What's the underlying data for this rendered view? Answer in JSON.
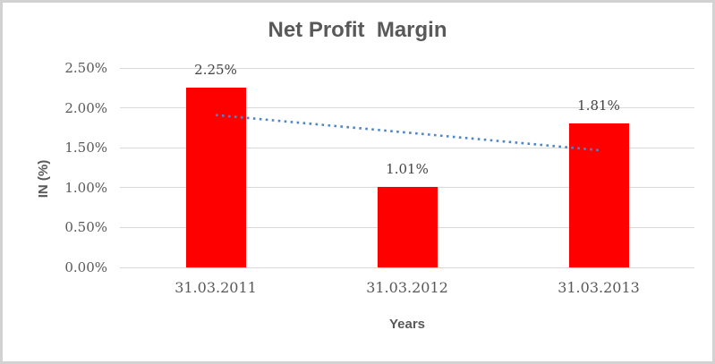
{
  "window": {
    "background": "#ffffff",
    "border_color": "#d2d2d2"
  },
  "colors": {
    "title_text": "#595959",
    "axis_title_text": "#595959",
    "tick_text": "#595959",
    "data_label_text": "#444444",
    "gridline": "#d9d9d9",
    "bar": "#ff0000",
    "trendline": "#4e86c8"
  },
  "chart_data": {
    "type": "bar",
    "title": "Net Profit  Margin",
    "categories": [
      "31.03.2011",
      "31.03.2012",
      "31.03.2013"
    ],
    "series": [
      {
        "name": "Net Profit Margin",
        "values": [
          2.25,
          1.01,
          1.81
        ]
      }
    ],
    "data_labels": [
      "2.25%",
      "1.01%",
      "1.81%"
    ],
    "xlabel": "Years",
    "ylabel": "IN (%)",
    "ylim": [
      0,
      2.5
    ],
    "ytick_step": 0.5,
    "ytick_labels": [
      "0.00%",
      "0.50%",
      "1.00%",
      "1.50%",
      "2.00%",
      "2.50%"
    ],
    "grid": true,
    "legend": "none",
    "trendline": {
      "type": "linear",
      "style": "dotted",
      "color": "#4e86c8",
      "start_value": 1.91,
      "end_value": 1.47
    }
  }
}
